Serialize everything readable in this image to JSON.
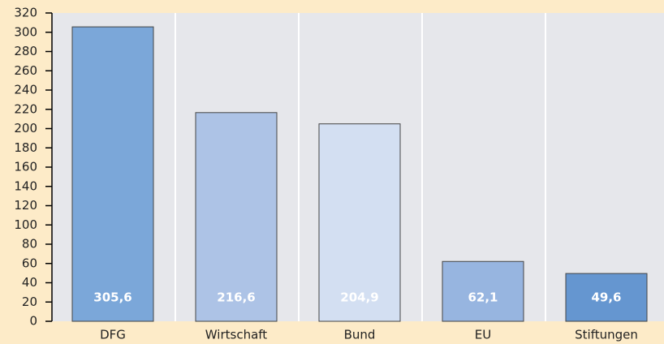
{
  "chart_data": {
    "type": "bar",
    "categories": [
      "DFG",
      "Wirtschaft",
      "Bund",
      "EU",
      "Stiftungen"
    ],
    "values": [
      305.6,
      216.6,
      204.9,
      62.1,
      49.6
    ],
    "value_labels": [
      "305,6",
      "216,6",
      "204,9",
      "62,1",
      "49,6"
    ],
    "colors": [
      "#7ba7d9",
      "#adc3e6",
      "#d3dff2",
      "#97b5e0",
      "#6596d0"
    ],
    "ylim": [
      0,
      320
    ],
    "yticks": [
      0,
      20,
      40,
      60,
      80,
      100,
      120,
      140,
      160,
      180,
      200,
      220,
      240,
      260,
      280,
      300,
      320
    ]
  }
}
